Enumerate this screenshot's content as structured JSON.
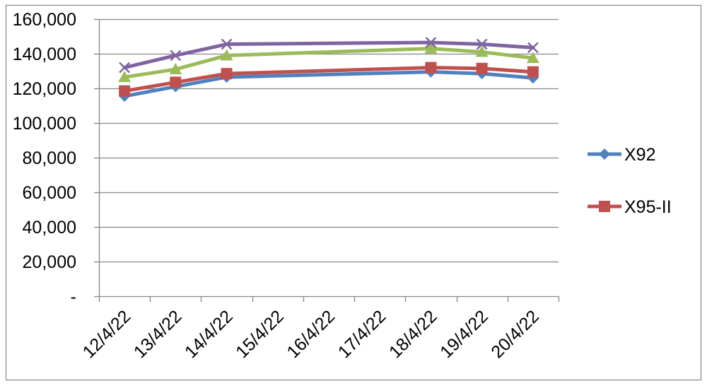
{
  "chart_data": {
    "type": "line",
    "categories": [
      "12/4/22",
      "13/4/22",
      "14/4/22",
      "15/4/22",
      "16/4/22",
      "17/4/22",
      "18/4/22",
      "19/4/22",
      "20/4/22"
    ],
    "ylim": [
      0,
      160000
    ],
    "yticks": [
      0,
      20000,
      40000,
      60000,
      80000,
      100000,
      120000,
      140000,
      160000
    ],
    "ytick_labels": [
      "-",
      "20,000",
      "40,000",
      "60,000",
      "80,000",
      "100,000",
      "120,000",
      "140,000",
      "160,000"
    ],
    "grid": true,
    "legend": "right",
    "series": [
      {
        "name": "X92",
        "color": "#4F81BD",
        "marker": "diamond",
        "values": [
          115500,
          121000,
          126500,
          null,
          null,
          null,
          129500,
          128500,
          126000
        ]
      },
      {
        "name": "X95-II",
        "color": "#C0504D",
        "marker": "square",
        "values": [
          118500,
          123500,
          128500,
          null,
          null,
          null,
          132000,
          131500,
          129500
        ]
      },
      {
        "color": "#9BBB59",
        "marker": "triangle",
        "values": [
          126500,
          131000,
          139000,
          null,
          null,
          null,
          143000,
          141000,
          137500
        ]
      },
      {
        "color": "#8064A2",
        "marker": "x",
        "values": [
          132000,
          139000,
          145500,
          null,
          null,
          null,
          146500,
          145500,
          143500
        ]
      }
    ]
  }
}
